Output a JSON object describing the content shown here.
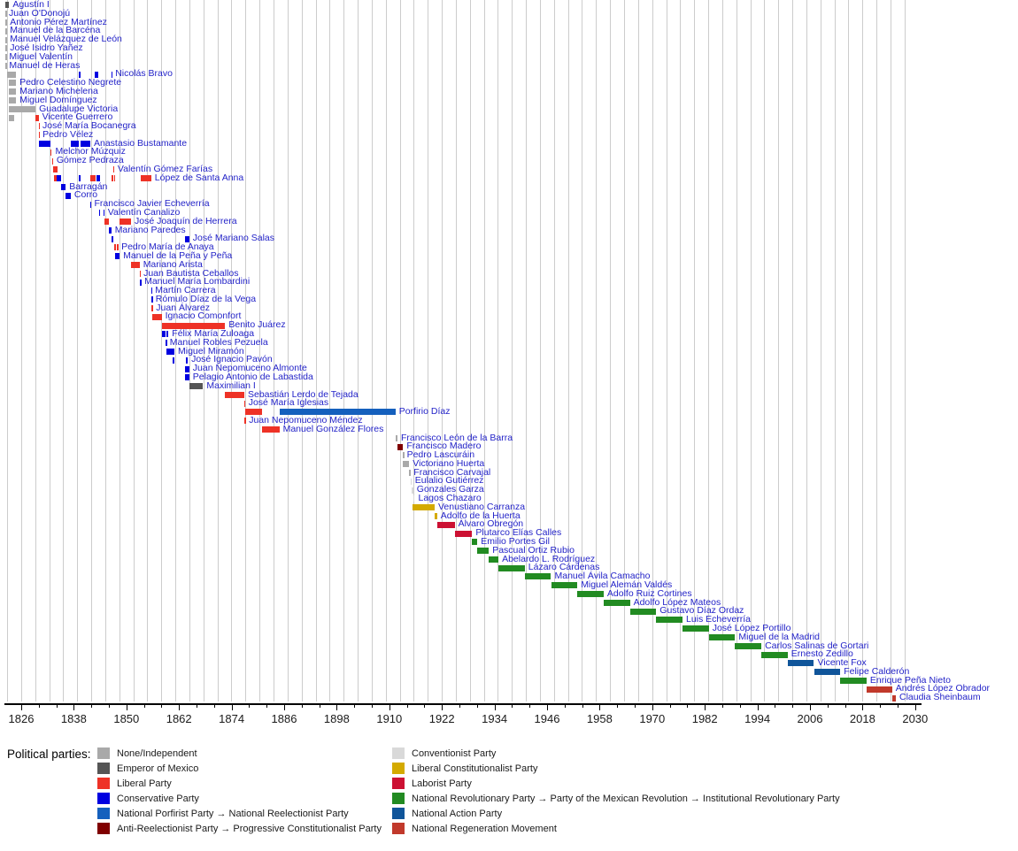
{
  "legend": {
    "heading": "Political parties:",
    "columns": [
      [
        "no",
        "em",
        "li",
        "co",
        "po",
        "ar"
      ],
      [
        "cv",
        "lc",
        "la",
        "pr",
        "pa",
        "mo"
      ]
    ]
  },
  "parties": {
    "no": {
      "label": "None/Independent",
      "color": "#a9a9a9"
    },
    "em": {
      "label": "Emperor of Mexico",
      "color": "#555555"
    },
    "li": {
      "label": "Liberal Party",
      "color": "#ee3226"
    },
    "co": {
      "label": "Conservative Party",
      "color": "#0000e0"
    },
    "po": {
      "label": "National Porfirist Party → National Reelectionist Party",
      "color": "#1560bd"
    },
    "ar": {
      "label": "Anti-Reelectionist Party → Progressive Constitutionalist Party",
      "color": "#800000"
    },
    "cv": {
      "label": "Conventionist Party",
      "color": "#d9d9d9"
    },
    "lc": {
      "label": "Liberal Constitutionalist Party",
      "color": "#d4aa00"
    },
    "la": {
      "label": "Laborist Party",
      "color": "#cc1133"
    },
    "pr": {
      "label": "National Revolutionary Party → Party of the Mexican Revolution → Institutional Revolutionary Party",
      "color": "#228b22"
    },
    "pa": {
      "label": "National Action Party",
      "color": "#10559a"
    },
    "mo": {
      "label": "National Regeneration Movement",
      "color": "#c1392b"
    }
  },
  "chart_data": {
    "type": "bar",
    "variant": "timeline-gantt",
    "x_axis": {
      "tick_years": [
        1826,
        1838,
        1850,
        1862,
        1874,
        1886,
        1898,
        1910,
        1922,
        1934,
        1946,
        1958,
        1970,
        1982,
        1994,
        2006,
        2018,
        2030
      ],
      "minor_tick_step": 4,
      "range": [
        1822,
        2032
      ],
      "grid": true
    },
    "rows": [
      {
        "name": "Agustín I",
        "segments": [
          [
            1821.7,
            1822.4,
            "no"
          ],
          [
            1822.4,
            1823.25,
            "em"
          ]
        ]
      },
      {
        "name": "Juan O'Donojú",
        "segments": [
          [
            1821.7,
            1821.8,
            "no"
          ]
        ]
      },
      {
        "name": "Antonio Pérez Martínez",
        "segments": [
          [
            1822.0,
            1822.6,
            "no"
          ]
        ]
      },
      {
        "name": "Manuel de la Barcéna",
        "segments": [
          [
            1822.0,
            1822.6,
            "no"
          ]
        ]
      },
      {
        "name": "Manuel Velázquez de León",
        "segments": [
          [
            1822.0,
            1822.6,
            "no"
          ]
        ]
      },
      {
        "name": "José Isidro Yañez",
        "segments": [
          [
            1822.0,
            1822.6,
            "no"
          ]
        ]
      },
      {
        "name": "Miguel Valentín",
        "segments": [
          [
            1822.3,
            1822.45,
            "no"
          ]
        ]
      },
      {
        "name": "Manuel de Heras",
        "segments": [
          [
            1822.3,
            1822.45,
            "no"
          ]
        ]
      },
      {
        "name": "Nicolás Bravo",
        "segments": [
          [
            1822.8,
            1823.0,
            "no"
          ],
          [
            1823.25,
            1824.8,
            "no"
          ],
          [
            1839.2,
            1839.55,
            "co"
          ],
          [
            1842.7,
            1843.6,
            "co"
          ],
          [
            1846.5,
            1846.65,
            "co"
          ]
        ]
      },
      {
        "name": "Pedro Celestino Negrete",
        "segments": [
          [
            1823.25,
            1824.8,
            "no"
          ]
        ]
      },
      {
        "name": "Mariano Michelena",
        "segments": [
          [
            1823.25,
            1824.8,
            "no"
          ]
        ]
      },
      {
        "name": "Miguel Domínguez",
        "segments": [
          [
            1823.25,
            1824.8,
            "no"
          ]
        ]
      },
      {
        "name": "Guadalupe Victoria",
        "segments": [
          [
            1823.25,
            1829.25,
            "no"
          ]
        ]
      },
      {
        "name": "Vicente Guerrero",
        "segments": [
          [
            1823.25,
            1824.3,
            "no"
          ],
          [
            1829.25,
            1829.95,
            "li"
          ]
        ]
      },
      {
        "name": "José María Bocanegra",
        "segments": [
          [
            1829.95,
            1830.05,
            "li"
          ]
        ]
      },
      {
        "name": "Pedro Vélez",
        "segments": [
          [
            1829.97,
            1830.07,
            "li"
          ]
        ]
      },
      {
        "name": "Anastasio Bustamante",
        "segments": [
          [
            1830.05,
            1832.6,
            "co"
          ],
          [
            1837.3,
            1839.2,
            "co"
          ],
          [
            1839.55,
            1841.75,
            "co"
          ]
        ]
      },
      {
        "name": "Melchor Múzquiz",
        "segments": [
          [
            1832.6,
            1832.97,
            "li"
          ]
        ]
      },
      {
        "name": "Gómez Pedraza",
        "segments": [
          [
            1832.97,
            1833.25,
            "li"
          ]
        ]
      },
      {
        "name": "Valentín Gómez Farías",
        "segments": [
          [
            1833.25,
            1834.35,
            "li"
          ],
          [
            1846.95,
            1847.2,
            "li"
          ]
        ]
      },
      {
        "name": "López de Santa Anna",
        "segments": [
          [
            1833.4,
            1834.1,
            "li"
          ],
          [
            1834.15,
            1835.05,
            "co"
          ],
          [
            1839.2,
            1839.55,
            "co"
          ],
          [
            1841.75,
            1842.3,
            "li"
          ],
          [
            1842.35,
            1842.9,
            "li"
          ],
          [
            1843.25,
            1844.0,
            "co"
          ],
          [
            1846.65,
            1846.95,
            "li"
          ],
          [
            1847.2,
            1847.45,
            "li"
          ],
          [
            1853.3,
            1855.65,
            "li"
          ]
        ]
      },
      {
        "name": "Barragán",
        "segments": [
          [
            1835.05,
            1836.15,
            "co"
          ]
        ]
      },
      {
        "name": "Corro",
        "segments": [
          [
            1836.15,
            1837.3,
            "co"
          ]
        ]
      },
      {
        "name": "Francisco Javier Echeverría",
        "segments": [
          [
            1841.7,
            1841.85,
            "co"
          ]
        ]
      },
      {
        "name": "Valentín Canalizo",
        "segments": [
          [
            1843.75,
            1844.05,
            "co"
          ],
          [
            1844.7,
            1844.95,
            "co"
          ]
        ]
      },
      {
        "name": "José Joaquín de Herrera",
        "segments": [
          [
            1844.95,
            1845.95,
            "li"
          ],
          [
            1848.45,
            1851.05,
            "li"
          ]
        ]
      },
      {
        "name": "Mariano Paredes",
        "segments": [
          [
            1846.0,
            1846.55,
            "co"
          ]
        ]
      },
      {
        "name": "José Mariano Salas",
        "segments": [
          [
            1846.6,
            1846.95,
            "co"
          ],
          [
            1863.45,
            1864.35,
            "co"
          ]
        ]
      },
      {
        "name": "Pedro María de Anaya",
        "segments": [
          [
            1847.25,
            1847.45,
            "li"
          ],
          [
            1847.85,
            1848.05,
            "li"
          ]
        ]
      },
      {
        "name": "Manuel de la Peña y Peña",
        "segments": [
          [
            1847.45,
            1848.45,
            "co"
          ]
        ]
      },
      {
        "name": "Mariano Arista",
        "segments": [
          [
            1851.05,
            1853.0,
            "li"
          ]
        ]
      },
      {
        "name": "Juan Bautista Ceballos",
        "segments": [
          [
            1853.0,
            1853.1,
            "li"
          ]
        ]
      },
      {
        "name": "Manuel María Lombardini",
        "segments": [
          [
            1853.1,
            1853.3,
            "co"
          ]
        ]
      },
      {
        "name": "Martín Carrera",
        "segments": [
          [
            1855.6,
            1855.75,
            "co"
          ]
        ]
      },
      {
        "name": "Rómulo Díaz de la Vega",
        "segments": [
          [
            1855.75,
            1855.85,
            "co"
          ]
        ]
      },
      {
        "name": "Juan Álvarez",
        "segments": [
          [
            1855.75,
            1855.95,
            "li"
          ]
        ]
      },
      {
        "name": "Ignacio Comonfort",
        "segments": [
          [
            1855.95,
            1858.05,
            "li"
          ]
        ]
      },
      {
        "name": "Benito Juárez",
        "segments": [
          [
            1858.05,
            1872.55,
            "li"
          ]
        ]
      },
      {
        "name": "Félix María Zuloaga",
        "segments": [
          [
            1858.05,
            1858.95,
            "co"
          ],
          [
            1859.1,
            1859.6,
            "co"
          ]
        ]
      },
      {
        "name": "Manuel Robles Pezuela",
        "segments": [
          [
            1858.95,
            1859.1,
            "co"
          ]
        ]
      },
      {
        "name": "Miguel Miramón",
        "segments": [
          [
            1859.1,
            1860.95,
            "co"
          ]
        ]
      },
      {
        "name": "José Ignacio Pavón",
        "segments": [
          [
            1860.6,
            1860.7,
            "co"
          ],
          [
            1863.5,
            1864.0,
            "co"
          ]
        ]
      },
      {
        "name": "Juan Nepomuceno Almonte",
        "segments": [
          [
            1863.4,
            1864.35,
            "co"
          ]
        ]
      },
      {
        "name": "Pelagio Antonio de Labastida",
        "segments": [
          [
            1863.4,
            1864.35,
            "co"
          ]
        ]
      },
      {
        "name": "Maximilian I",
        "segments": [
          [
            1864.35,
            1867.5,
            "em"
          ]
        ]
      },
      {
        "name": "Sebastián Lerdo de Tejada",
        "segments": [
          [
            1872.55,
            1876.9,
            "li"
          ]
        ]
      },
      {
        "name": "José María Iglesias",
        "segments": [
          [
            1876.8,
            1877.05,
            "li"
          ]
        ]
      },
      {
        "name": "Porfirio Díaz",
        "segments": [
          [
            1877.1,
            1880.9,
            "li"
          ],
          [
            1884.9,
            1911.4,
            "po"
          ]
        ]
      },
      {
        "name": "Juan Nepomuceno Méndez",
        "segments": [
          [
            1876.95,
            1877.15,
            "li"
          ]
        ]
      },
      {
        "name": "Manuel González Flores",
        "segments": [
          [
            1880.9,
            1884.9,
            "li"
          ]
        ]
      },
      {
        "name": "Francisco León de la Barra",
        "segments": [
          [
            1911.4,
            1911.85,
            "no"
          ]
        ]
      },
      {
        "name": "Francisco Madero",
        "segments": [
          [
            1911.85,
            1913.15,
            "ar"
          ]
        ]
      },
      {
        "name": "Pedro Lascuráin",
        "segments": [
          [
            1913.1,
            1913.2,
            "no"
          ]
        ]
      },
      {
        "name": "Victoriano Huerta",
        "segments": [
          [
            1913.15,
            1914.55,
            "no"
          ]
        ]
      },
      {
        "name": "Francisco Carvajal",
        "segments": [
          [
            1914.55,
            1914.75,
            "no"
          ]
        ]
      },
      {
        "name": "Eulalio Gutiérrez",
        "segments": [
          [
            1914.85,
            1915.05,
            "cv"
          ]
        ]
      },
      {
        "name": "Gonzales Garza",
        "segments": [
          [
            1915.05,
            1915.45,
            "cv"
          ]
        ]
      },
      {
        "name": "Lagos Chazaro",
        "segments": [
          [
            1915.45,
            1915.8,
            "cv"
          ]
        ]
      },
      {
        "name": "Venustiano Carranza",
        "segments": [
          [
            1915.3,
            1920.35,
            "lc"
          ]
        ]
      },
      {
        "name": "Adolfo de la Huerta",
        "segments": [
          [
            1920.4,
            1920.9,
            "lc"
          ]
        ]
      },
      {
        "name": "Álvaro Obregón",
        "segments": [
          [
            1920.9,
            1924.9,
            "la"
          ]
        ]
      },
      {
        "name": "Plutarco Elías Calles",
        "segments": [
          [
            1924.9,
            1928.9,
            "la"
          ]
        ]
      },
      {
        "name": "Emilio Portes Gil",
        "segments": [
          [
            1928.9,
            1930.1,
            "pr"
          ]
        ]
      },
      {
        "name": "Pascual Ortiz Rubio",
        "segments": [
          [
            1930.1,
            1932.7,
            "pr"
          ]
        ]
      },
      {
        "name": "Abelardo L. Rodríguez",
        "segments": [
          [
            1932.7,
            1934.9,
            "pr"
          ]
        ]
      },
      {
        "name": "Lázaro Cárdenas",
        "segments": [
          [
            1934.9,
            1940.9,
            "pr"
          ]
        ]
      },
      {
        "name": "Manuel Ávila Camacho",
        "segments": [
          [
            1940.9,
            1946.9,
            "pr"
          ]
        ]
      },
      {
        "name": "Miguel Alemán Valdés",
        "segments": [
          [
            1946.9,
            1952.9,
            "pr"
          ]
        ]
      },
      {
        "name": "Adolfo Ruiz Cortines",
        "segments": [
          [
            1952.9,
            1958.9,
            "pr"
          ]
        ]
      },
      {
        "name": "Adolfo López Mateos",
        "segments": [
          [
            1958.9,
            1964.9,
            "pr"
          ]
        ]
      },
      {
        "name": "Gustavo Díaz Ordaz",
        "segments": [
          [
            1964.9,
            1970.9,
            "pr"
          ]
        ]
      },
      {
        "name": "Luis Echeverría",
        "segments": [
          [
            1970.9,
            1976.9,
            "pr"
          ]
        ]
      },
      {
        "name": "José López Portillo",
        "segments": [
          [
            1976.9,
            1982.9,
            "pr"
          ]
        ]
      },
      {
        "name": "Miguel de la Madrid",
        "segments": [
          [
            1982.9,
            1988.9,
            "pr"
          ]
        ]
      },
      {
        "name": "Carlos Salinas de Gortari",
        "segments": [
          [
            1988.9,
            1994.9,
            "pr"
          ]
        ]
      },
      {
        "name": "Ernesto Zedillo",
        "segments": [
          [
            1994.9,
            2000.9,
            "pr"
          ]
        ]
      },
      {
        "name": "Vicente Fox",
        "segments": [
          [
            2000.9,
            2006.9,
            "pa"
          ]
        ]
      },
      {
        "name": "Felipe Calderón",
        "segments": [
          [
            2006.9,
            2012.9,
            "pa"
          ]
        ]
      },
      {
        "name": "Enrique Peña Nieto",
        "segments": [
          [
            2012.9,
            2018.9,
            "pr"
          ]
        ]
      },
      {
        "name": "Andrés López Obrador",
        "segments": [
          [
            2018.9,
            2024.75,
            "mo"
          ]
        ]
      },
      {
        "name": "Claudia Sheinbaum",
        "segments": [
          [
            2024.75,
            2025.6,
            "mo"
          ]
        ]
      }
    ]
  }
}
